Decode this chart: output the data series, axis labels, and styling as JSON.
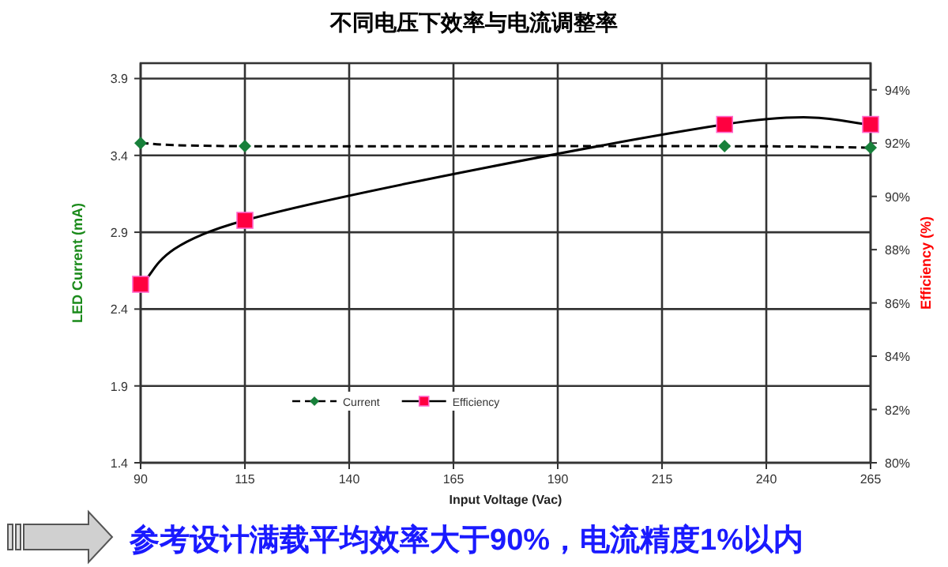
{
  "chart_data": {
    "type": "line",
    "title": "不同电压下效率与电流调整率",
    "xlabel": "Input Voltage (Vac)",
    "ylabel": "LED Current (mA)",
    "y2label": "Efficiency (%)",
    "x": [
      90,
      115,
      230,
      265
    ],
    "series": [
      {
        "name": "Current",
        "color": "#17803a",
        "values": [
          3.48,
          3.46,
          3.46,
          3.45
        ],
        "marker": "diamond",
        "line_style": "dashed"
      },
      {
        "name": "Efficiency",
        "color": "#ff0040",
        "values": [
          86.7,
          89.1,
          92.7,
          92.7
        ],
        "marker": "square",
        "line_style": "solid",
        "axis": "y2"
      }
    ],
    "xlim": [
      90,
      265
    ],
    "xticks": [
      90,
      115,
      140,
      165,
      190,
      215,
      240,
      265
    ],
    "ylim": [
      1.4,
      4.0
    ],
    "yticks": [
      1.4,
      1.9,
      2.4,
      2.9,
      3.4,
      3.9
    ],
    "y2lim": [
      80,
      95
    ],
    "y2ticks": [
      {
        "value": 80,
        "label": "80%"
      },
      {
        "value": 82,
        "label": "82%"
      },
      {
        "value": 84,
        "label": "84%"
      },
      {
        "value": 86,
        "label": "86%"
      },
      {
        "value": 88,
        "label": "88%"
      },
      {
        "value": 90,
        "label": "90%"
      },
      {
        "value": 92,
        "label": "92%"
      },
      {
        "value": 94,
        "label": "94%"
      }
    ],
    "grid": true,
    "legend": "bottom",
    "annotations": [
      "参考设计满载平均效率大于90%，电流精度1%以内"
    ]
  }
}
